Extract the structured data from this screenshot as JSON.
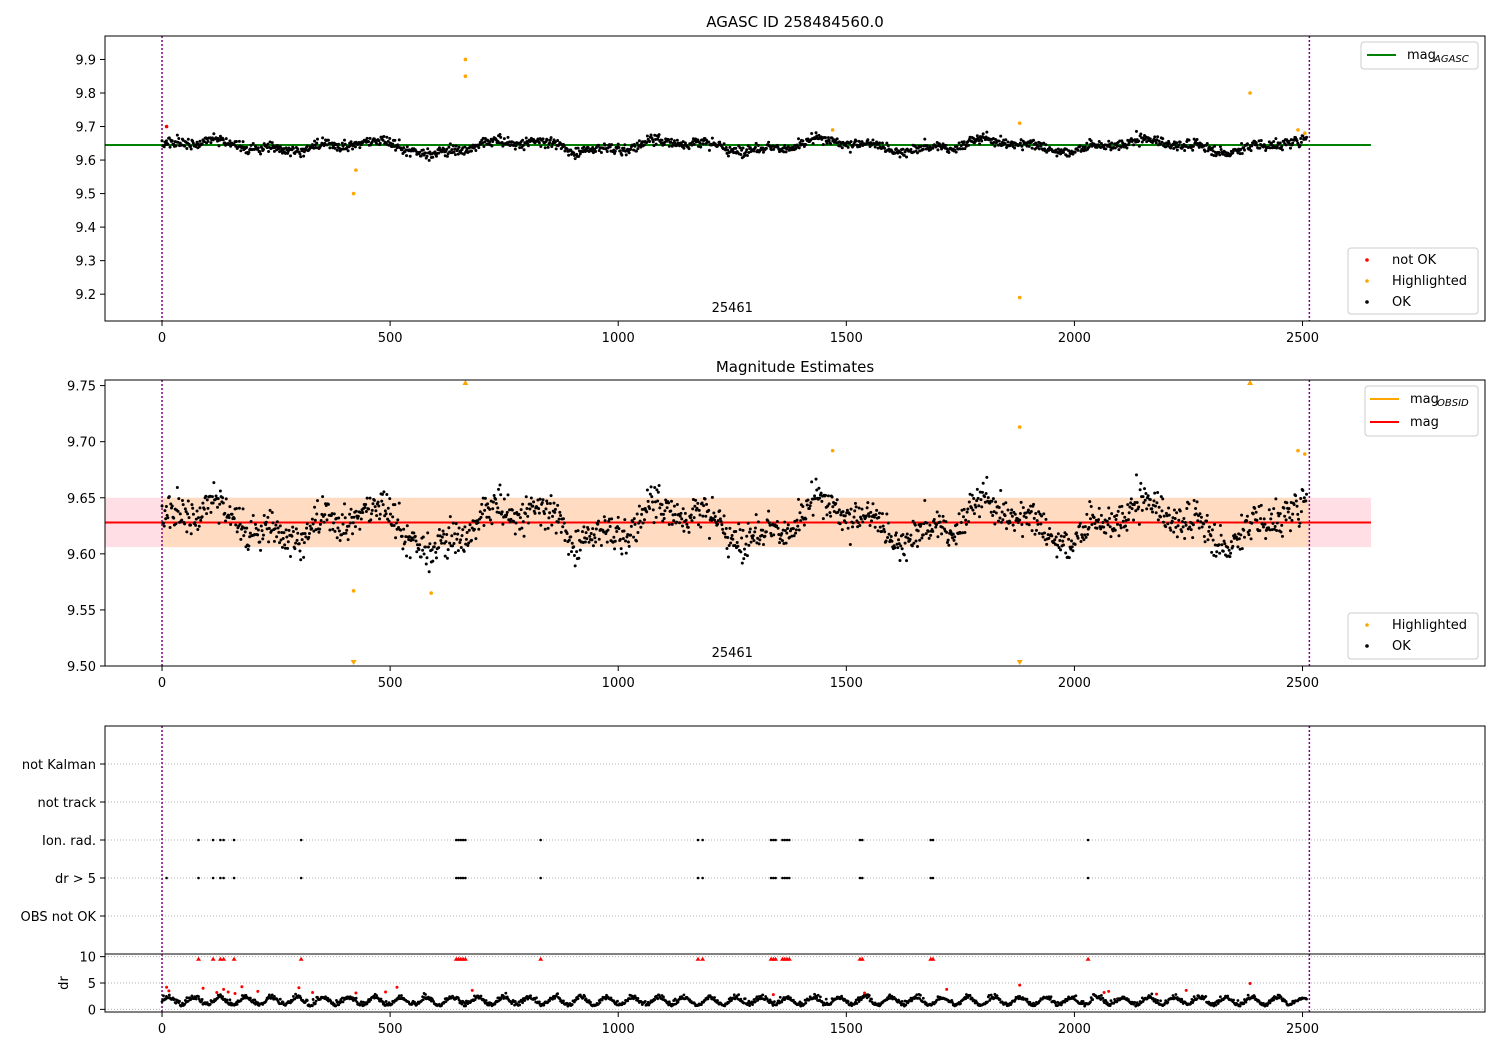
{
  "colors": {
    "ok": "#000000",
    "not_ok": "#ff0000",
    "highlighted": "#ffa500",
    "mag_agasc_line": "#008000",
    "mag_line": "#ff0000",
    "mag_obsid_line": "#ffa500",
    "obs_band": "#ffdab9",
    "range_band": "#ffc0cb",
    "interval_line": "#800080",
    "grid": "#b0b0b0"
  },
  "chart_data": [
    {
      "type": "scatter",
      "panel": "agasc",
      "title": "AGASC ID 258484560.0",
      "xlim": [
        -125,
        2900
      ],
      "ylim": [
        9.12,
        9.97
      ],
      "x_ticks": [
        "0",
        "500",
        "1000",
        "1500",
        "2000",
        "2500"
      ],
      "x_tick_values": [
        0,
        500,
        1000,
        1500,
        2000,
        2500
      ],
      "y_ticks": [
        "9.2",
        "9.3",
        "9.4",
        "9.5",
        "9.6",
        "9.7",
        "9.8",
        "9.9"
      ],
      "y_tick_values": [
        9.2,
        9.3,
        9.4,
        9.5,
        9.6,
        9.7,
        9.8,
        9.9
      ],
      "obsid_label": "25461",
      "obsid_label_x": 1250,
      "mag_agasc": 9.645,
      "interval_x": [
        0,
        2515
      ],
      "legend_lines": [
        {
          "label": "mag",
          "sub": "AGASC"
        }
      ],
      "legend_points": [
        "not OK",
        "Highlighted",
        "OK"
      ],
      "highlighted_points": [
        [
          420,
          9.5
        ],
        [
          425,
          9.57
        ],
        [
          665,
          9.9
        ],
        [
          665,
          9.85
        ],
        [
          1470,
          9.69
        ],
        [
          1880,
          9.71
        ],
        [
          1880,
          9.19
        ],
        [
          2385,
          9.8
        ],
        [
          2490,
          9.69
        ],
        [
          2505,
          9.68
        ]
      ],
      "not_ok_points": [
        [
          10,
          9.7
        ]
      ]
    },
    {
      "type": "scatter",
      "panel": "estimates",
      "title": "Magnitude Estimates",
      "xlim": [
        -125,
        2900
      ],
      "ylim": [
        9.5,
        9.755
      ],
      "x_ticks": [
        "0",
        "500",
        "1000",
        "1500",
        "2000",
        "2500"
      ],
      "x_tick_values": [
        0,
        500,
        1000,
        1500,
        2000,
        2500
      ],
      "y_ticks": [
        "9.50",
        "9.55",
        "9.60",
        "9.65",
        "9.70",
        "9.75"
      ],
      "y_tick_values": [
        9.5,
        9.55,
        9.6,
        9.65,
        9.7,
        9.75
      ],
      "obsid_label": "25461",
      "obsid_label_x": 1250,
      "mag": 9.628,
      "mag_obsid": 9.628,
      "obsid_band": [
        9.606,
        9.65
      ],
      "range_band": [
        9.606,
        9.65
      ],
      "interval_x": [
        0,
        2515
      ],
      "legend_lines": [
        {
          "label": "mag",
          "sub": "OBSID"
        },
        {
          "label": "mag",
          "sub": ""
        }
      ],
      "legend_points": [
        "Highlighted",
        "OK"
      ],
      "highlighted_points": [
        [
          420,
          9.567
        ],
        [
          590,
          9.565
        ],
        [
          1470,
          9.692
        ],
        [
          1880,
          9.713
        ],
        [
          2490,
          9.692
        ],
        [
          2505,
          9.689
        ]
      ],
      "clipped_up": [
        665,
        2385
      ],
      "clipped_down": [
        420,
        1880
      ]
    },
    {
      "type": "scatter",
      "panel": "flags",
      "xlim": [
        -125,
        2900
      ],
      "categories": [
        "not Kalman",
        "not track",
        "Ion. rad.",
        "dr > 5",
        "OBS not OK"
      ],
      "interval_x": [
        0,
        2515
      ],
      "flag_x": {
        "Ion. rad.": [
          80,
          112,
          128,
          135,
          158,
          305,
          645,
          650,
          655,
          660,
          665,
          830,
          1175,
          1185,
          1335,
          1340,
          1345,
          1360,
          1365,
          1370,
          1375,
          1530,
          1535,
          1685,
          1690,
          2030
        ],
        "dr > 5": [
          10,
          80,
          112,
          128,
          135,
          158,
          305,
          645,
          650,
          655,
          660,
          665,
          830,
          1175,
          1185,
          1335,
          1340,
          1345,
          1360,
          1365,
          1370,
          1375,
          1530,
          1535,
          1685,
          1690,
          2030
        ]
      }
    },
    {
      "type": "scatter",
      "panel": "dr",
      "xlim": [
        -125,
        2900
      ],
      "ylim": [
        -0.5,
        10.5
      ],
      "ylabel": "dr",
      "x_ticks": [
        "0",
        "500",
        "1000",
        "1500",
        "2000",
        "2500"
      ],
      "x_tick_values": [
        0,
        500,
        1000,
        1500,
        2000,
        2500
      ],
      "y_ticks": [
        "0",
        "5",
        "10"
      ],
      "y_tick_values": [
        0,
        5,
        10
      ],
      "interval_x": [
        0,
        2515
      ],
      "red_capped_x": [
        80,
        112,
        128,
        135,
        158,
        305,
        645,
        650,
        655,
        660,
        665,
        830,
        1175,
        1185,
        1335,
        1340,
        1345,
        1360,
        1365,
        1370,
        1375,
        1530,
        1535,
        1685,
        1690,
        2030
      ],
      "red_points": [
        [
          10,
          4.2
        ],
        [
          15,
          3.5
        ],
        [
          90,
          4
        ],
        [
          120,
          3.2
        ],
        [
          135,
          3.8
        ],
        [
          145,
          3.3
        ],
        [
          160,
          3
        ],
        [
          175,
          4.3
        ],
        [
          210,
          3.4
        ],
        [
          300,
          4.1
        ],
        [
          330,
          3.2
        ],
        [
          425,
          3.1
        ],
        [
          490,
          3.3
        ],
        [
          515,
          4.2
        ],
        [
          680,
          3.6
        ],
        [
          1340,
          2.8
        ],
        [
          1540,
          3.1
        ],
        [
          1720,
          3.8
        ],
        [
          1880,
          4.6
        ],
        [
          2065,
          3.2
        ],
        [
          2075,
          3.4
        ],
        [
          2180,
          2.9
        ],
        [
          2245,
          3.6
        ],
        [
          2385,
          4.9
        ]
      ]
    }
  ]
}
